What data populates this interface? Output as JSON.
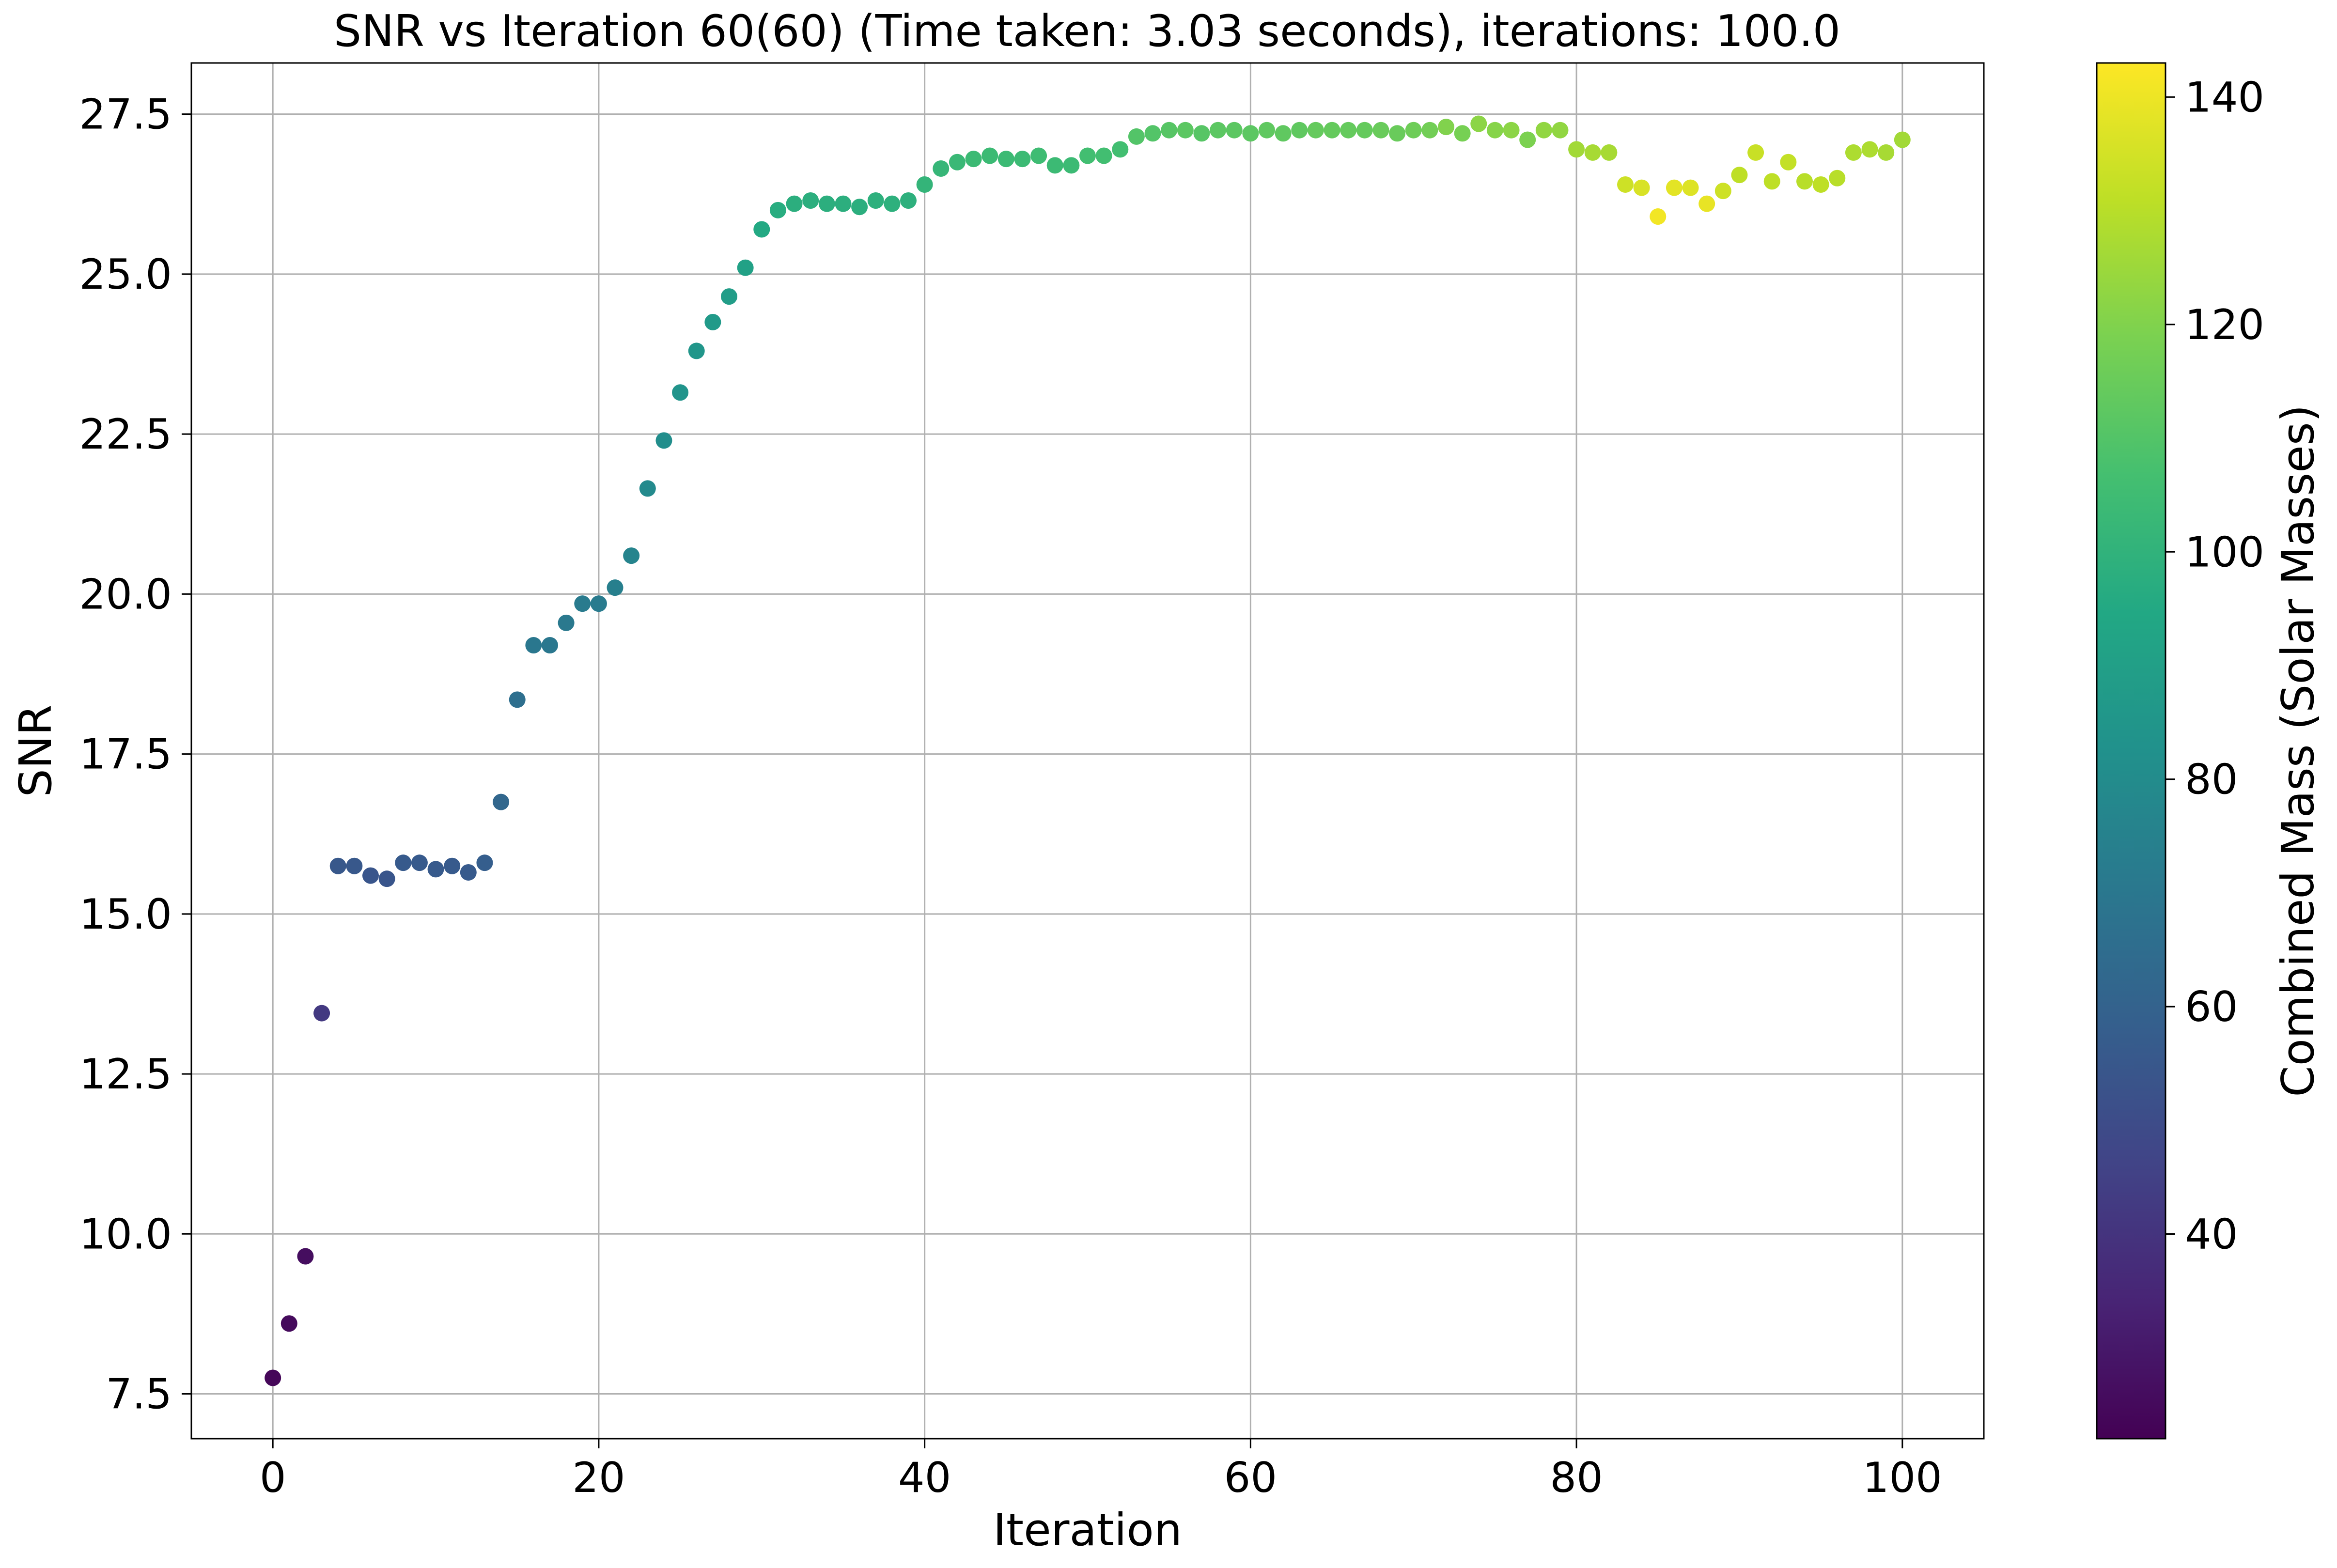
{
  "chart_data": {
    "type": "scatter",
    "title": "SNR vs Iteration 60(60) (Time taken: 3.03 seconds), iterations: 100.0",
    "xlabel": "Iteration",
    "ylabel": "SNR",
    "xlim": [
      -5,
      105
    ],
    "ylim": [
      6.8,
      28.3
    ],
    "xticks": [
      0,
      20,
      40,
      60,
      80,
      100
    ],
    "yticks": [
      7.5,
      10.0,
      12.5,
      15.0,
      17.5,
      20.0,
      22.5,
      25.0,
      27.5
    ],
    "grid": true,
    "colorbar": {
      "label": "Combined Mass (Solar Masses)",
      "colormap": "viridis",
      "range": [
        22,
        143
      ],
      "ticks": [
        40,
        60,
        80,
        100,
        120,
        140
      ]
    },
    "series": [
      {
        "x": [
          0,
          1,
          2,
          3,
          4,
          5,
          6,
          7,
          8,
          9,
          10,
          11,
          12,
          13,
          14,
          15,
          16,
          17,
          18,
          19,
          20,
          21,
          22,
          23,
          24,
          25,
          26,
          27,
          28,
          29,
          30,
          31,
          32,
          33,
          34,
          35,
          36,
          37,
          38,
          39,
          40,
          41,
          42,
          43,
          44,
          45,
          46,
          47,
          48,
          49,
          50,
          51,
          52,
          53,
          54,
          55,
          56,
          57,
          58,
          59,
          60,
          61,
          62,
          63,
          64,
          65,
          66,
          67,
          68,
          69,
          70,
          71,
          72,
          73,
          74,
          75,
          76,
          77,
          78,
          79,
          80,
          81,
          82,
          83,
          84,
          85,
          86,
          87,
          88,
          89,
          90,
          91,
          92,
          93,
          94,
          95,
          96,
          97,
          98,
          99,
          100
        ],
        "y": [
          7.75,
          8.6,
          9.65,
          13.45,
          15.75,
          15.75,
          15.6,
          15.55,
          15.8,
          15.8,
          15.7,
          15.75,
          15.65,
          15.8,
          16.75,
          18.35,
          19.2,
          19.2,
          19.55,
          19.85,
          19.85,
          20.1,
          20.6,
          21.65,
          22.4,
          23.15,
          23.8,
          24.25,
          24.65,
          25.1,
          25.7,
          26.0,
          26.1,
          26.15,
          26.1,
          26.1,
          26.05,
          26.15,
          26.1,
          26.15,
          26.4,
          26.65,
          26.75,
          26.8,
          26.85,
          26.8,
          26.8,
          26.85,
          26.7,
          26.7,
          26.85,
          26.85,
          26.95,
          27.15,
          27.2,
          27.25,
          27.25,
          27.2,
          27.25,
          27.25,
          27.2,
          27.25,
          27.2,
          27.25,
          27.25,
          27.25,
          27.25,
          27.25,
          27.25,
          27.2,
          27.25,
          27.25,
          27.3,
          27.2,
          27.35,
          27.25,
          27.25,
          27.1,
          27.25,
          27.25,
          26.95,
          26.9,
          26.9,
          26.4,
          26.35,
          25.9,
          26.35,
          26.35,
          26.1,
          26.3,
          26.55,
          26.9,
          26.45,
          26.75,
          26.45,
          26.4,
          26.5,
          26.9,
          26.95,
          26.9,
          27.1
        ],
        "mass": [
          24,
          25,
          26,
          42,
          55,
          55,
          54,
          54,
          56,
          56,
          56,
          56,
          56,
          58,
          62,
          66,
          70,
          70,
          71,
          72,
          72,
          74,
          76,
          79,
          81,
          84,
          85,
          87,
          89,
          91,
          95,
          97,
          98,
          98,
          98,
          98,
          98,
          99,
          99,
          99,
          101,
          102,
          103,
          104,
          104,
          104,
          104,
          105,
          104,
          104,
          106,
          106,
          106,
          110,
          110,
          111,
          112,
          111,
          112,
          112,
          112,
          113,
          113,
          113,
          114,
          114,
          114,
          114,
          115,
          115,
          116,
          117,
          120,
          118,
          122,
          121,
          122,
          119,
          123,
          123,
          126,
          127,
          127,
          134,
          136,
          141,
          138,
          137,
          139,
          134,
          131,
          133,
          131,
          132,
          130,
          131,
          130,
          128,
          128,
          127,
          126
        ]
      }
    ]
  }
}
